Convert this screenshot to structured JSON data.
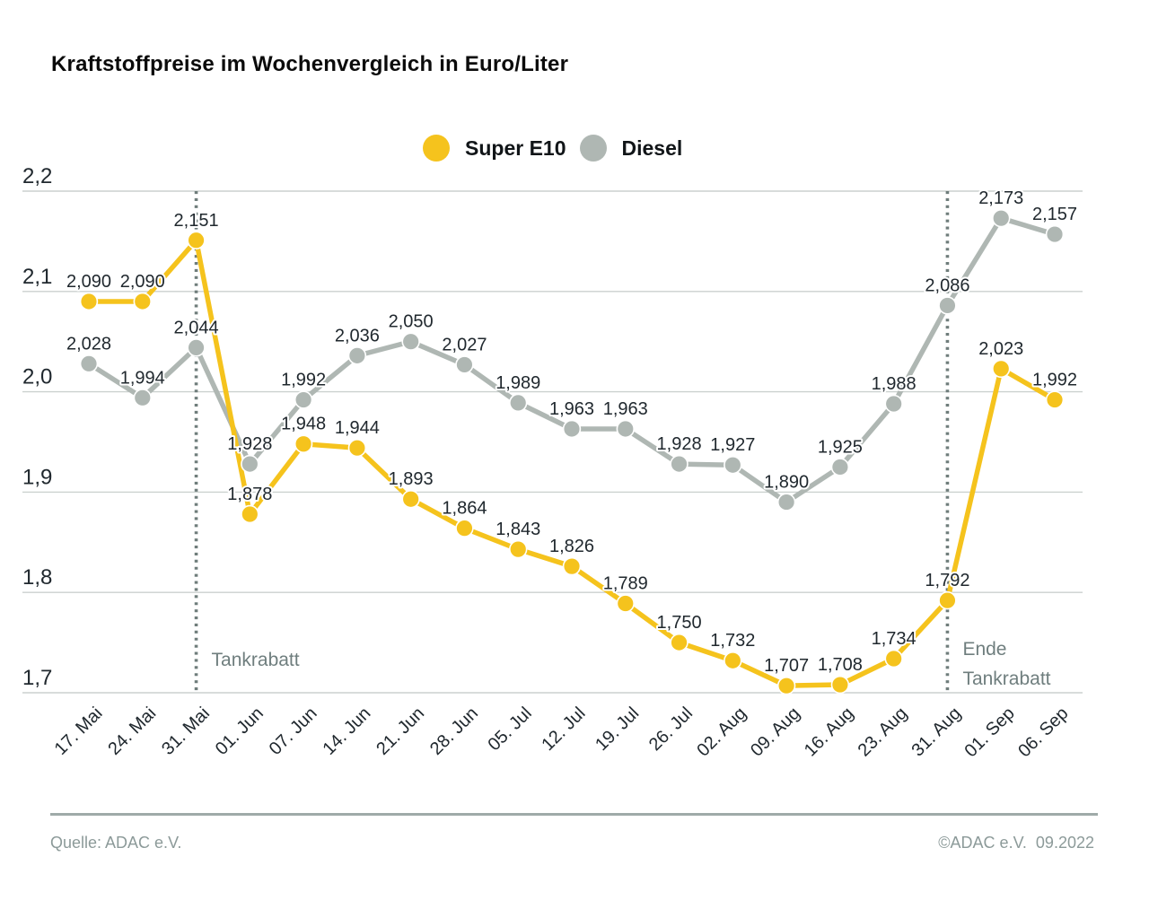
{
  "header": {
    "title": "Kraftstoffpreise im Wochenvergleich in Euro/Liter"
  },
  "footer": {
    "source": "Quelle: ADAC e.V.",
    "copyright": "©ADAC e.V.  09.2022"
  },
  "chart_data": {
    "type": "line",
    "title": "Kraftstoffpreise im Wochenvergleich in Euro/Liter",
    "unit": "Euro/Liter",
    "categories": [
      "17. Mai",
      "24. Mai",
      "31. Mai",
      "01. Jun",
      "07. Jun",
      "14. Jun",
      "21. Jun",
      "28. Jun",
      "05. Jul",
      "12. Jul",
      "19. Jul",
      "26. Jul",
      "02. Aug",
      "09. Aug",
      "16. Aug",
      "23. Aug",
      "31. Aug",
      "01. Sep",
      "06. Sep"
    ],
    "series": [
      {
        "name": "Diesel",
        "color": "#AFB7B3",
        "values": [
          2.028,
          1.994,
          2.044,
          1.928,
          1.992,
          2.036,
          2.05,
          2.027,
          1.989,
          1.963,
          1.963,
          1.928,
          1.927,
          1.89,
          1.925,
          1.988,
          2.086,
          2.173,
          2.157
        ]
      },
      {
        "name": "Super E10",
        "color": "#F5C31D",
        "values": [
          2.09,
          2.09,
          2.151,
          1.878,
          1.948,
          1.944,
          1.893,
          1.864,
          1.843,
          1.826,
          1.789,
          1.75,
          1.732,
          1.707,
          1.708,
          1.734,
          1.792,
          2.023,
          1.992
        ]
      }
    ],
    "legend_order": [
      "Super E10",
      "Diesel"
    ],
    "legend_position": "top-center",
    "ylim": [
      1.7,
      2.2
    ],
    "ytick_values": [
      2.2,
      2.1,
      2.0,
      1.9,
      1.8,
      1.7
    ],
    "grid": true,
    "decimal_separator": ",",
    "annotations": [
      {
        "category": "31. Mai",
        "lines": [
          "Tankrabatt"
        ]
      },
      {
        "category": "31. Aug",
        "lines": [
          "Ende",
          "Tankrabatt"
        ]
      }
    ],
    "colors": {
      "grid": "#cbd1cf",
      "axis_text": "#20282e",
      "data_label_text": "#20282e",
      "annotation_line": "#6f7d7b",
      "annotation_text": "#6f7e7e",
      "footer_text": "#8c9a99",
      "footer_rule": "#9faaa8"
    }
  }
}
